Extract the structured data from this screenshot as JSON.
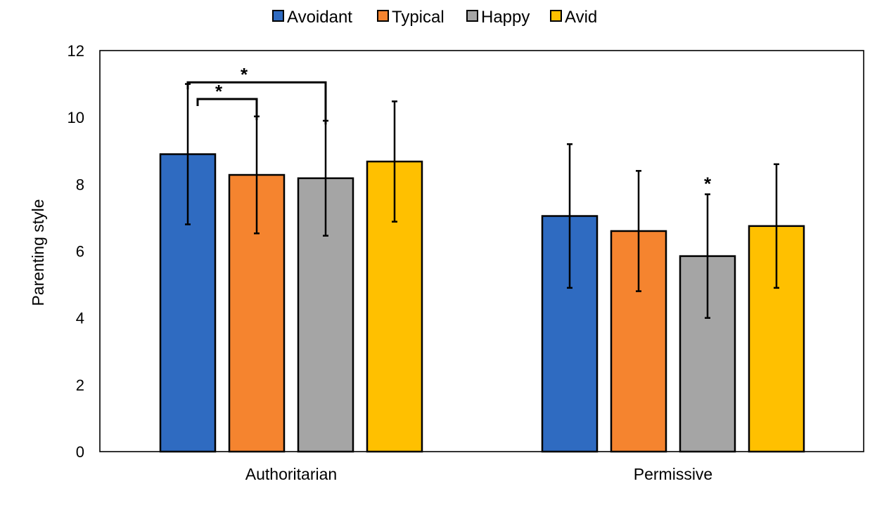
{
  "chart_data": {
    "type": "bar",
    "title": "",
    "xlabel": "",
    "ylabel": "Parenting style",
    "ylim": [
      0,
      12
    ],
    "yticks": [
      "0",
      "2",
      "4",
      "6",
      "8",
      "10",
      "12"
    ],
    "grid": false,
    "legend_position": "top",
    "categories": [
      "Authoritarian",
      "Permissive"
    ],
    "series": [
      {
        "name": "Avoidant",
        "color": "#2F6BC1",
        "values": [
          8.9,
          7.05
        ],
        "errors": [
          2.1,
          2.15
        ]
      },
      {
        "name": "Typical",
        "color": "#F5842F",
        "values": [
          8.28,
          6.6
        ],
        "errors": [
          1.75,
          1.8
        ]
      },
      {
        "name": "Happy",
        "color": "#A5A5A5",
        "values": [
          8.18,
          5.85
        ],
        "errors": [
          1.72,
          1.85
        ]
      },
      {
        "name": "Avid",
        "color": "#FFC000",
        "values": [
          8.68,
          6.75
        ],
        "errors": [
          1.8,
          1.85
        ]
      }
    ],
    "annotations": [
      {
        "type": "bracket",
        "label": "*",
        "category": 0,
        "from_series": 0,
        "to_series": 1,
        "y": 10.55
      },
      {
        "type": "bracket",
        "label": "*",
        "category": 0,
        "from_series": 0,
        "to_series": 2,
        "y": 11.05
      },
      {
        "type": "point",
        "label": "*",
        "category": 1,
        "series": 2,
        "y": 8.0
      }
    ]
  }
}
